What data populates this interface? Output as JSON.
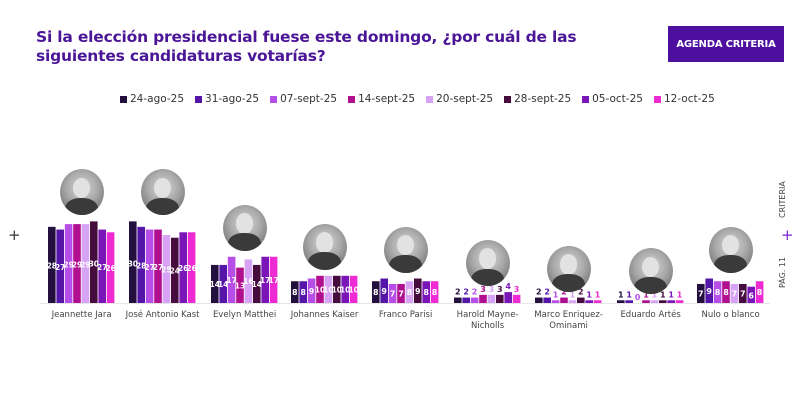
{
  "header": {
    "title": "Si la elección presidencial fuese este domingo, ¿por cuál de las siguientes candidaturas votarías?",
    "brand_button": "AGENDA CRITERIA"
  },
  "side": {
    "brand": "CRITERIA",
    "page": "PÁG. 11",
    "plus": "+"
  },
  "left_plus": "+",
  "chart_data": {
    "type": "bar",
    "title": "Si la elección presidencial fuese este domingo, ¿por cuál de las siguientes candidaturas votarías?",
    "xlabel": "",
    "ylabel": "",
    "ylim": [
      0,
      32
    ],
    "grid": false,
    "legend_position": "top",
    "categories": [
      "Jeannette Jara",
      "José Antonio Kast",
      "Evelyn Matthei",
      "Johannes Kaiser",
      "Franco Parisi",
      "Harold Mayne-Nicholls",
      "Marco Enriquez-Ominami",
      "Eduardo Artés",
      "Nulo o blanco"
    ],
    "series": [
      {
        "name": "24-ago-25",
        "color": "#24103f",
        "values": [
          28,
          30,
          14,
          8,
          8,
          2,
          2,
          1,
          7
        ]
      },
      {
        "name": "31-ago-25",
        "color": "#5515a8",
        "values": [
          27,
          28,
          14,
          8,
          9,
          2,
          2,
          1,
          9
        ]
      },
      {
        "name": "07-sept-25",
        "color": "#b84ee8",
        "values": [
          29,
          27,
          17,
          9,
          7,
          2,
          1,
          0,
          8
        ]
      },
      {
        "name": "14-sept-25",
        "color": "#b0108f",
        "values": [
          29,
          27,
          13,
          10,
          7,
          3,
          2,
          1,
          8
        ]
      },
      {
        "name": "20-sept-25",
        "color": "#d6a3f5",
        "values": [
          29,
          25,
          16,
          10,
          8,
          3,
          1,
          1,
          7
        ]
      },
      {
        "name": "28-sept-25",
        "color": "#470c3e",
        "values": [
          30,
          24,
          14,
          10,
          9,
          3,
          2,
          1,
          7
        ]
      },
      {
        "name": "05-oct-25",
        "color": "#7a16b8",
        "values": [
          27,
          26,
          17,
          10,
          8,
          4,
          1,
          1,
          6
        ]
      },
      {
        "name": "12-oct-25",
        "color": "#ee2ad2",
        "values": [
          26,
          26,
          17,
          10,
          8,
          3,
          1,
          1,
          8
        ]
      }
    ]
  }
}
